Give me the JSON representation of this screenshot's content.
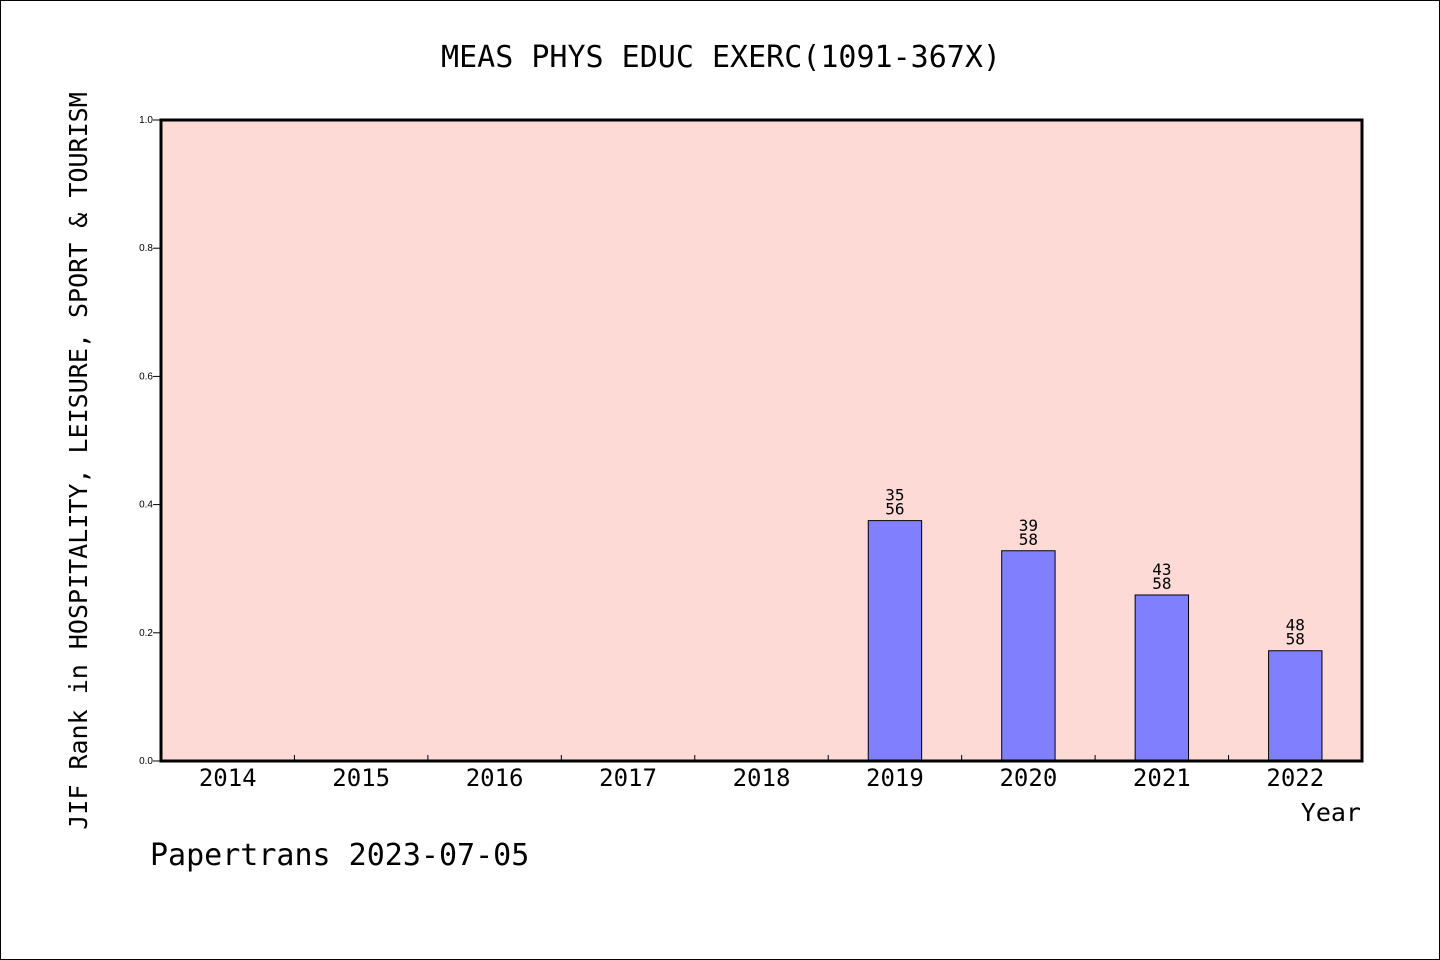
{
  "chart_data": {
    "type": "bar",
    "title": "MEAS PHYS EDUC EXERC(1091-367X)",
    "ylabel": "JIF Rank in HOSPITALITY, LEISURE, SPORT & TOURISM",
    "xlabel": "Year",
    "ylim": [
      0,
      1.0
    ],
    "yticks": [
      "0.0",
      "0.2",
      "0.4",
      "0.6",
      "0.8",
      "1.0"
    ],
    "categories": [
      "2014",
      "2015",
      "2016",
      "2017",
      "2018",
      "2019",
      "2020",
      "2021",
      "2022"
    ],
    "values": [
      null,
      null,
      null,
      null,
      null,
      0.375,
      0.328,
      0.259,
      0.172
    ],
    "bar_labels": [
      null,
      null,
      null,
      null,
      null,
      {
        "rank": "35",
        "total": "56"
      },
      {
        "rank": "39",
        "total": "58"
      },
      {
        "rank": "43",
        "total": "58"
      },
      {
        "rank": "48",
        "total": "58"
      }
    ],
    "grid": false,
    "colors": {
      "plot_background": "#fddad6",
      "bar_fill": "#8080ff",
      "bar_edge": "#000000"
    }
  },
  "footer": "Papertrans 2023-07-05"
}
